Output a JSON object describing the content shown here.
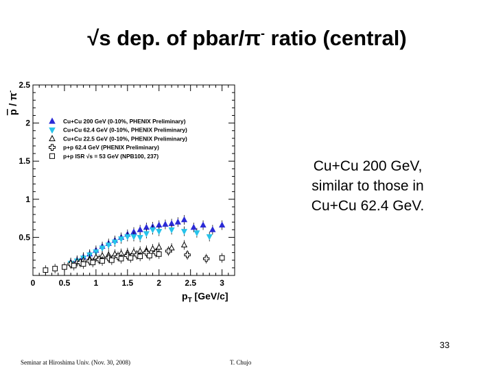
{
  "slide": {
    "title_main": "√s dep. of pbar/π",
    "title_sup": "-",
    "title_rest": " ratio (central)",
    "note_lines": [
      "Cu+Cu 200 GeV,",
      "similar to those in",
      "Cu+Cu 62.4 GeV."
    ],
    "page_number": "33",
    "footer_left": "Seminar at Hiroshima Univ. (Nov. 30, 2008)",
    "footer_center": "T. Chujo"
  },
  "chart_data": {
    "type": "scatter",
    "ylabel_main": "p",
    "ylabel_rest": " / π",
    "ylabel_sup": "-",
    "xlabel_main": "p",
    "xlabel_sub": "T",
    "xlabel_unit": " [GeV/c]",
    "xlim": [
      0,
      3.2
    ],
    "ylim": [
      0,
      2.5
    ],
    "x_ticks": [
      "0",
      "0.5",
      "1",
      "1.5",
      "2",
      "2.5",
      "3"
    ],
    "y_ticks": [
      "0.5",
      "1",
      "1.5",
      "2",
      "2.5"
    ],
    "legend_placement": "top-left",
    "series": [
      {
        "name": "Cu+Cu 200 GeV (0-10%, PHENIX Preliminary)",
        "marker": "triangle-up-filled",
        "color": "#2b2bd6",
        "x": [
          0.6,
          0.7,
          0.8,
          0.9,
          1.0,
          1.1,
          1.2,
          1.3,
          1.4,
          1.5,
          1.6,
          1.7,
          1.8,
          1.9,
          2.0,
          2.1,
          2.2,
          2.3,
          2.4,
          2.55,
          2.7,
          2.85,
          3.0
        ],
        "y": [
          0.17,
          0.2,
          0.24,
          0.28,
          0.33,
          0.38,
          0.42,
          0.46,
          0.5,
          0.54,
          0.57,
          0.6,
          0.63,
          0.64,
          0.66,
          0.67,
          0.68,
          0.7,
          0.73,
          0.63,
          0.66,
          0.6,
          0.66
        ]
      },
      {
        "name": "Cu+Cu 62.4 GeV (0-10%, PHENIX Preliminary)",
        "marker": "triangle-down-filled",
        "color": "#27c3ea",
        "x": [
          0.6,
          0.7,
          0.8,
          0.9,
          1.0,
          1.1,
          1.2,
          1.3,
          1.4,
          1.5,
          1.6,
          1.7,
          1.8,
          1.9,
          2.0,
          2.2,
          2.4,
          2.6,
          2.8
        ],
        "y": [
          0.16,
          0.19,
          0.23,
          0.27,
          0.31,
          0.36,
          0.4,
          0.44,
          0.48,
          0.51,
          0.51,
          0.5,
          0.55,
          0.6,
          0.58,
          0.6,
          0.58,
          0.56,
          0.51
        ]
      },
      {
        "name": "Cu+Cu 22.5  GeV (0-10%, PHENIX Preliminary)",
        "marker": "triangle-up-open",
        "color": "#000000",
        "x": [
          0.6,
          0.7,
          0.8,
          0.9,
          1.0,
          1.1,
          1.2,
          1.3,
          1.4,
          1.5,
          1.6,
          1.7,
          1.8,
          1.9,
          2.0,
          2.2,
          2.4
        ],
        "y": [
          0.16,
          0.18,
          0.2,
          0.22,
          0.24,
          0.26,
          0.27,
          0.28,
          0.29,
          0.3,
          0.31,
          0.32,
          0.33,
          0.35,
          0.37,
          0.36,
          0.4
        ]
      },
      {
        "name": "p+p 62.4 GeV (PHENIX Preliminary)",
        "marker": "cross-open",
        "color": "#000000",
        "x": [
          0.6,
          0.75,
          0.9,
          1.05,
          1.2,
          1.35,
          1.5,
          1.65,
          1.8,
          1.95,
          2.15,
          2.45,
          2.75
        ],
        "y": [
          0.15,
          0.17,
          0.19,
          0.21,
          0.23,
          0.25,
          0.26,
          0.27,
          0.3,
          0.3,
          0.32,
          0.27,
          0.22
        ]
      },
      {
        "name": "p+p ISR √s = 53 GeV (NPB100, 237)",
        "marker": "square-open",
        "color": "#000000",
        "x": [
          0.2,
          0.35,
          0.5,
          0.65,
          0.8,
          0.95,
          1.1,
          1.25,
          1.4,
          1.55,
          1.7,
          1.85,
          2.0,
          3.0
        ],
        "y": [
          0.07,
          0.09,
          0.11,
          0.13,
          0.15,
          0.17,
          0.19,
          0.2,
          0.22,
          0.23,
          0.25,
          0.26,
          0.28,
          0.23
        ]
      }
    ]
  }
}
